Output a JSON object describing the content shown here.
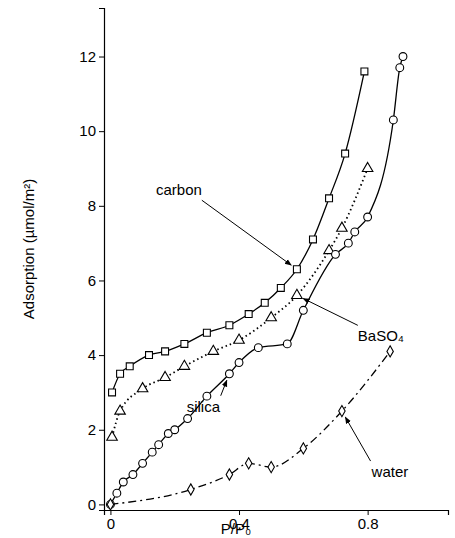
{
  "chart_data": {
    "type": "scatter",
    "x_label": "P/P₀",
    "y_label": "Adsorption (µmol/m²)",
    "xlim": [
      -0.02,
      1.05
    ],
    "ylim": [
      -0.15,
      13.3
    ],
    "xticks": [
      0,
      0.4,
      0.8
    ],
    "yticks": [
      0,
      2,
      4,
      6,
      8,
      10,
      12
    ],
    "legend": false,
    "series": [
      {
        "name": "carbon",
        "color": "#000000",
        "marker": "square",
        "line_style": "solid",
        "x": [
          0.005,
          0.03,
          0.06,
          0.12,
          0.17,
          0.23,
          0.3,
          0.37,
          0.43,
          0.48,
          0.53,
          0.58,
          0.63,
          0.68,
          0.73,
          0.79
        ],
        "values": [
          3.0,
          3.5,
          3.7,
          4.0,
          4.1,
          4.3,
          4.6,
          4.8,
          5.1,
          5.4,
          5.8,
          6.3,
          7.1,
          8.2,
          9.4,
          11.6
        ]
      },
      {
        "name": "BaSO₄",
        "color": "#000000",
        "marker": "triangle",
        "line_style": "dotted",
        "x": [
          0.005,
          0.03,
          0.1,
          0.17,
          0.23,
          0.32,
          0.4,
          0.5,
          0.58,
          0.68,
          0.72,
          0.8
        ],
        "values": [
          1.8,
          2.5,
          3.1,
          3.4,
          3.7,
          4.1,
          4.4,
          5.0,
          5.6,
          6.8,
          7.4,
          9.0
        ]
      },
      {
        "name": "silica",
        "color": "#000000",
        "marker": "circle",
        "line_style": "solid",
        "x": [
          0,
          0.02,
          0.04,
          0.07,
          0.1,
          0.13,
          0.15,
          0.18,
          0.2,
          0.24,
          0.3,
          0.37,
          0.4,
          0.46,
          0.55,
          0.6,
          0.7,
          0.74,
          0.76,
          0.8,
          0.88,
          0.9,
          0.91
        ],
        "values": [
          0,
          0.3,
          0.6,
          0.8,
          1.1,
          1.4,
          1.6,
          1.9,
          2.0,
          2.3,
          2.9,
          3.5,
          3.8,
          4.2,
          4.3,
          5.2,
          6.7,
          7.0,
          7.3,
          7.7,
          10.3,
          11.7,
          12.0
        ]
      },
      {
        "name": "water",
        "color": "#000000",
        "marker": "diamond",
        "line_style": "dashdot",
        "x": [
          0,
          0.25,
          0.37,
          0.43,
          0.5,
          0.6,
          0.72,
          0.87
        ],
        "values": [
          0,
          0.4,
          0.8,
          1.1,
          1.0,
          1.5,
          2.5,
          4.1
        ]
      }
    ]
  }
}
